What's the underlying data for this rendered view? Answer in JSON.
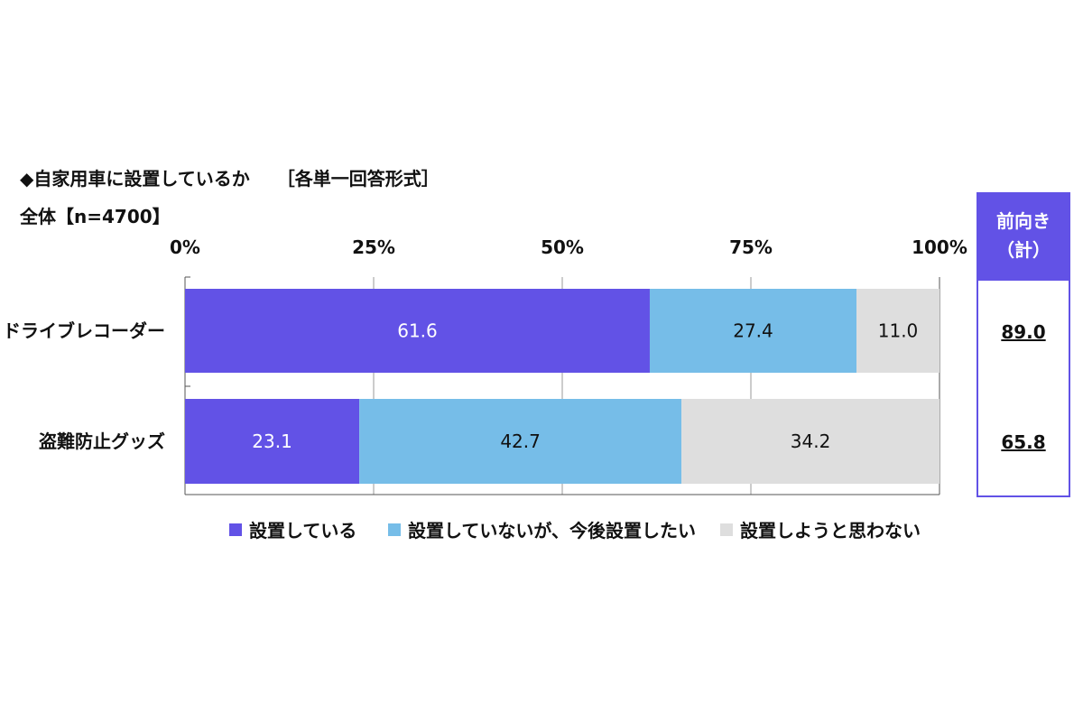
{
  "title": "◆自家用車に設置しているか　　［各単一回答形式］",
  "sample": "全体【n=4700】",
  "colors": {
    "installed": "#6252e6",
    "intend": "#76bde8",
    "no_intention": "#dedede",
    "text_dark": "#111111",
    "text_light": "#ffffff"
  },
  "chart_data": {
    "type": "bar",
    "orientation": "horizontal",
    "stacked": true,
    "categories": [
      "ドライブレコーダー",
      "盗難防止グッズ"
    ],
    "series": [
      {
        "name": "設置している",
        "values": [
          61.6,
          23.1
        ]
      },
      {
        "name": "設置していないが、今後設置したい",
        "values": [
          27.4,
          42.7
        ]
      },
      {
        "name": "設置しようと思わない",
        "values": [
          11.0,
          34.2
        ]
      }
    ],
    "value_labels": [
      [
        "61.6",
        "27.4",
        "11.0"
      ],
      [
        "23.1",
        "42.7",
        "34.2"
      ]
    ],
    "xlim": [
      0,
      100
    ],
    "xticks": [
      "0%",
      "25%",
      "50%",
      "75%",
      "100%"
    ],
    "grid": "vertical",
    "legend": "bottom"
  },
  "side_panel": {
    "header_line1": "前向き",
    "header_line2": "（計）",
    "totals": [
      "89.0",
      "65.8"
    ]
  }
}
